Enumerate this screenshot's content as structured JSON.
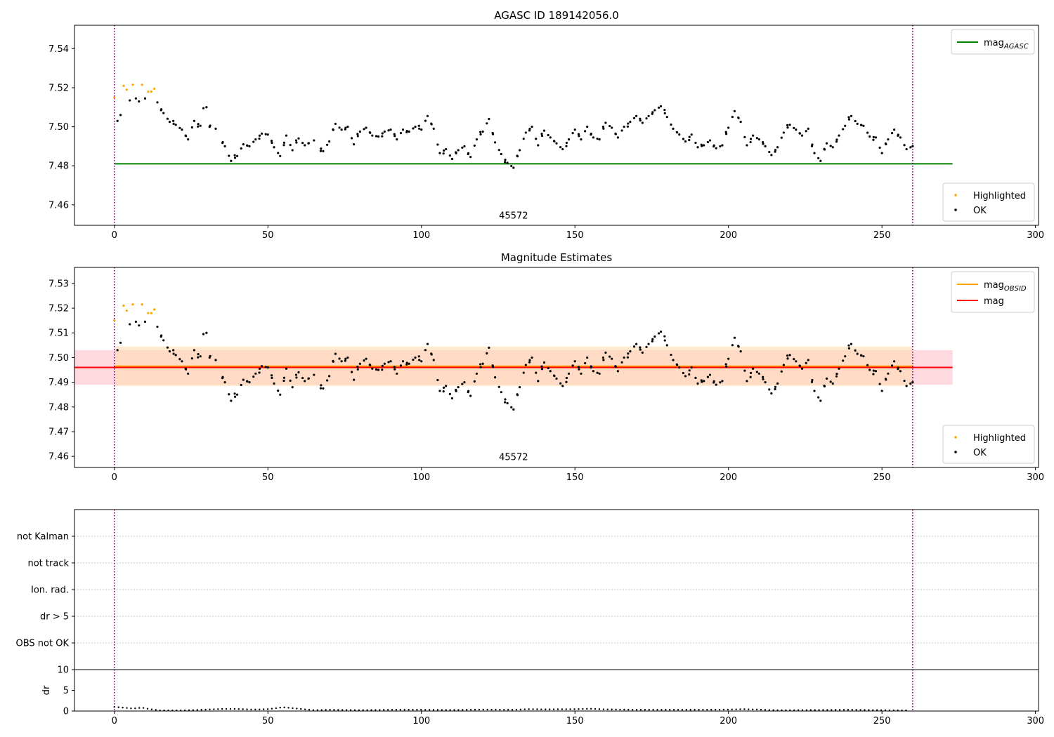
{
  "chart_data": [
    {
      "type": "scatter",
      "title": "AGASC ID 189142056.0",
      "xlim": [
        -13,
        301
      ],
      "ylim": [
        7.4495,
        7.552
      ],
      "xticks": [
        0,
        50,
        100,
        150,
        200,
        250,
        300
      ],
      "yticks": [
        7.46,
        7.48,
        7.5,
        7.52,
        7.54
      ],
      "ytick_labels": [
        "7.46",
        "7.48",
        "7.50",
        "7.52",
        "7.54"
      ],
      "vlines": [
        0,
        260
      ],
      "annotation": {
        "text": "45572",
        "x": 130,
        "y": 7.453
      },
      "legend_lines": [
        {
          "label": "mag",
          "subscript": "AGASC",
          "color": "#008000"
        }
      ],
      "legend_lines_position": "upper right",
      "legend_points": [
        {
          "label": "Highlighted",
          "color": "#ffa500"
        },
        {
          "label": "OK",
          "color": "#000000"
        }
      ],
      "legend_points_position": "lower right",
      "hlines": [
        {
          "name": "mag_AGASC",
          "y": 7.481,
          "x": [
            0,
            273
          ],
          "color": "#008000"
        }
      ]
    },
    {
      "type": "scatter",
      "title": "Magnitude Estimates",
      "xlim": [
        -13,
        301
      ],
      "ylim": [
        7.4555,
        7.5365
      ],
      "xticks": [
        0,
        50,
        100,
        150,
        200,
        250,
        300
      ],
      "yticks": [
        7.46,
        7.47,
        7.48,
        7.49,
        7.5,
        7.51,
        7.52,
        7.53
      ],
      "ytick_labels": [
        "7.46",
        "7.47",
        "7.48",
        "7.49",
        "7.50",
        "7.51",
        "7.52",
        "7.53"
      ],
      "vlines": [
        0,
        260
      ],
      "annotation": {
        "text": "45572",
        "x": 130,
        "y": 7.4585
      },
      "legend_lines": [
        {
          "label": "mag",
          "subscript": "OBSID",
          "color": "#ffa500"
        },
        {
          "label": "mag",
          "subscript": "",
          "color": "#ff0000"
        }
      ],
      "legend_lines_position": "upper right",
      "legend_points": [
        {
          "label": "Highlighted",
          "color": "#ffa500"
        },
        {
          "label": "OK",
          "color": "#000000"
        }
      ],
      "legend_points_position": "lower right",
      "bands": [
        {
          "name": "mag band",
          "y": [
            7.489,
            7.503
          ],
          "x": [
            -13,
            273
          ],
          "color": "#ffc0cb"
        },
        {
          "name": "mag_OBSID band",
          "y": [
            7.4885,
            7.5045
          ],
          "x": [
            0,
            260
          ],
          "color": "#ffdab0"
        }
      ],
      "hlines": [
        {
          "name": "mag_OBSID",
          "y": 7.4965,
          "x": [
            0,
            260
          ],
          "color": "#ffa500"
        },
        {
          "name": "mag",
          "y": 7.496,
          "x": [
            -13,
            273
          ],
          "color": "#ff0000"
        }
      ]
    },
    {
      "type": "scatter",
      "title": "",
      "xlim": [
        -13,
        301
      ],
      "categories": [
        "not Kalman",
        "not track",
        "Ion. rad.",
        "dr > 5",
        "OBS not OK"
      ],
      "vlines": [
        0,
        260
      ],
      "grid": "horizontal dotted"
    },
    {
      "type": "scatter",
      "title": "",
      "ylabel": "dr",
      "xlim": [
        -13,
        301
      ],
      "ylim": [
        0,
        10
      ],
      "xticks": [
        0,
        50,
        100,
        150,
        200,
        250,
        300
      ],
      "yticks": [
        0,
        5,
        10
      ],
      "ytick_labels": [
        "0",
        "5",
        "10"
      ],
      "vlines": [
        0,
        260
      ],
      "dr_series": [
        [
          0,
          1.0
        ],
        [
          3,
          0.8
        ],
        [
          6,
          0.6
        ],
        [
          9,
          0.8
        ],
        [
          12,
          0.4
        ],
        [
          15,
          0.15
        ],
        [
          20,
          0.15
        ],
        [
          25,
          0.2
        ],
        [
          30,
          0.35
        ],
        [
          35,
          0.5
        ],
        [
          40,
          0.5
        ],
        [
          45,
          0.35
        ],
        [
          50,
          0.45
        ],
        [
          55,
          0.9
        ],
        [
          58,
          0.7
        ],
        [
          62,
          0.4
        ],
        [
          65,
          0.2
        ],
        [
          70,
          0.3
        ],
        [
          75,
          0.25
        ],
        [
          80,
          0.2
        ],
        [
          90,
          0.3
        ],
        [
          100,
          0.3
        ],
        [
          110,
          0.25
        ],
        [
          120,
          0.35
        ],
        [
          130,
          0.3
        ],
        [
          135,
          0.45
        ],
        [
          140,
          0.4
        ],
        [
          150,
          0.45
        ],
        [
          155,
          0.55
        ],
        [
          160,
          0.4
        ],
        [
          170,
          0.3
        ],
        [
          180,
          0.3
        ],
        [
          190,
          0.3
        ],
        [
          200,
          0.35
        ],
        [
          205,
          0.45
        ],
        [
          210,
          0.35
        ],
        [
          215,
          0.2
        ],
        [
          220,
          0.2
        ],
        [
          230,
          0.25
        ],
        [
          240,
          0.3
        ],
        [
          250,
          0.2
        ],
        [
          258,
          0.15
        ]
      ]
    }
  ],
  "magnitude_series": {
    "highlighted": [
      [
        0,
        7.515
      ],
      [
        3,
        7.521
      ],
      [
        4,
        7.519
      ],
      [
        6,
        7.5215
      ],
      [
        9,
        7.5215
      ],
      [
        11,
        7.518
      ],
      [
        12,
        7.518
      ],
      [
        13,
        7.5195
      ]
    ],
    "ok_anchors": [
      [
        1,
        7.503
      ],
      [
        2,
        7.506
      ],
      [
        5,
        7.5135
      ],
      [
        7,
        7.5145
      ],
      [
        8,
        7.513
      ],
      [
        10,
        7.5145
      ],
      [
        14,
        7.5125
      ],
      [
        16,
        7.507
      ],
      [
        18,
        7.5025
      ],
      [
        20,
        7.501
      ],
      [
        22,
        7.4985
      ],
      [
        24,
        7.4935
      ],
      [
        26,
        7.503
      ],
      [
        28,
        7.5005
      ],
      [
        29,
        7.5095
      ],
      [
        30,
        7.51
      ],
      [
        31,
        7.5
      ],
      [
        33,
        7.499
      ],
      [
        36,
        7.49
      ],
      [
        38,
        7.4825
      ],
      [
        40,
        7.485
      ],
      [
        42,
        7.491
      ],
      [
        44,
        7.49
      ],
      [
        46,
        7.4935
      ],
      [
        48,
        7.4965
      ],
      [
        50,
        7.496
      ],
      [
        52,
        7.4895
      ],
      [
        54,
        7.485
      ],
      [
        56,
        7.4955
      ],
      [
        58,
        7.488
      ],
      [
        60,
        7.494
      ],
      [
        62,
        7.4905
      ],
      [
        65,
        7.493
      ],
      [
        68,
        7.4875
      ],
      [
        70,
        7.4925
      ],
      [
        72,
        7.5015
      ],
      [
        74,
        7.4985
      ],
      [
        76,
        7.5
      ],
      [
        78,
        7.491
      ],
      [
        80,
        7.4975
      ],
      [
        82,
        7.4995
      ],
      [
        84,
        7.4955
      ],
      [
        86,
        7.495
      ],
      [
        88,
        7.4975
      ],
      [
        90,
        7.4985
      ],
      [
        92,
        7.4935
      ],
      [
        94,
        7.4985
      ],
      [
        96,
        7.4975
      ],
      [
        98,
        7.5
      ],
      [
        100,
        7.4985
      ],
      [
        102,
        7.5055
      ],
      [
        104,
        7.499
      ],
      [
        106,
        7.4865
      ],
      [
        108,
        7.4885
      ],
      [
        110,
        7.4835
      ],
      [
        112,
        7.488
      ],
      [
        114,
        7.49
      ],
      [
        116,
        7.4845
      ],
      [
        118,
        7.4935
      ],
      [
        120,
        7.4975
      ],
      [
        122,
        7.504
      ],
      [
        124,
        7.492
      ],
      [
        126,
        7.486
      ],
      [
        128,
        7.4815
      ],
      [
        130,
        7.479
      ],
      [
        132,
        7.488
      ],
      [
        134,
        7.497
      ],
      [
        136,
        7.5
      ],
      [
        138,
        7.4905
      ],
      [
        140,
        7.498
      ],
      [
        142,
        7.4945
      ],
      [
        144,
        7.4915
      ],
      [
        146,
        7.4885
      ],
      [
        148,
        7.4935
      ],
      [
        150,
        7.4985
      ],
      [
        152,
        7.4935
      ],
      [
        154,
        7.5
      ],
      [
        156,
        7.4945
      ],
      [
        158,
        7.4935
      ],
      [
        160,
        7.502
      ],
      [
        162,
        7.4995
      ],
      [
        164,
        7.4945
      ],
      [
        166,
        7.5
      ],
      [
        168,
        7.5025
      ],
      [
        170,
        7.5055
      ],
      [
        172,
        7.502
      ],
      [
        174,
        7.5055
      ],
      [
        176,
        7.5085
      ],
      [
        178,
        7.5105
      ],
      [
        180,
        7.505
      ],
      [
        182,
        7.499
      ],
      [
        184,
        7.496
      ],
      [
        186,
        7.4925
      ],
      [
        188,
        7.496
      ],
      [
        190,
        7.4895
      ],
      [
        192,
        7.4905
      ],
      [
        194,
        7.493
      ],
      [
        196,
        7.489
      ],
      [
        198,
        7.4905
      ],
      [
        200,
        7.4995
      ],
      [
        202,
        7.508
      ],
      [
        204,
        7.5025
      ],
      [
        206,
        7.4905
      ],
      [
        208,
        7.4955
      ],
      [
        210,
        7.4935
      ],
      [
        212,
        7.49
      ],
      [
        214,
        7.4855
      ],
      [
        216,
        7.4895
      ],
      [
        218,
        7.497
      ],
      [
        220,
        7.501
      ],
      [
        222,
        7.4985
      ],
      [
        224,
        7.4955
      ],
      [
        226,
        7.499
      ],
      [
        228,
        7.4865
      ],
      [
        230,
        7.4825
      ],
      [
        232,
        7.4915
      ],
      [
        234,
        7.4895
      ],
      [
        236,
        7.4955
      ],
      [
        238,
        7.5005
      ],
      [
        240,
        7.5055
      ],
      [
        242,
        7.5015
      ],
      [
        244,
        7.5005
      ],
      [
        246,
        7.495
      ],
      [
        248,
        7.4945
      ],
      [
        250,
        7.4865
      ],
      [
        252,
        7.4935
      ],
      [
        254,
        7.4985
      ],
      [
        256,
        7.4945
      ],
      [
        258,
        7.4885
      ],
      [
        260,
        7.49
      ]
    ]
  }
}
